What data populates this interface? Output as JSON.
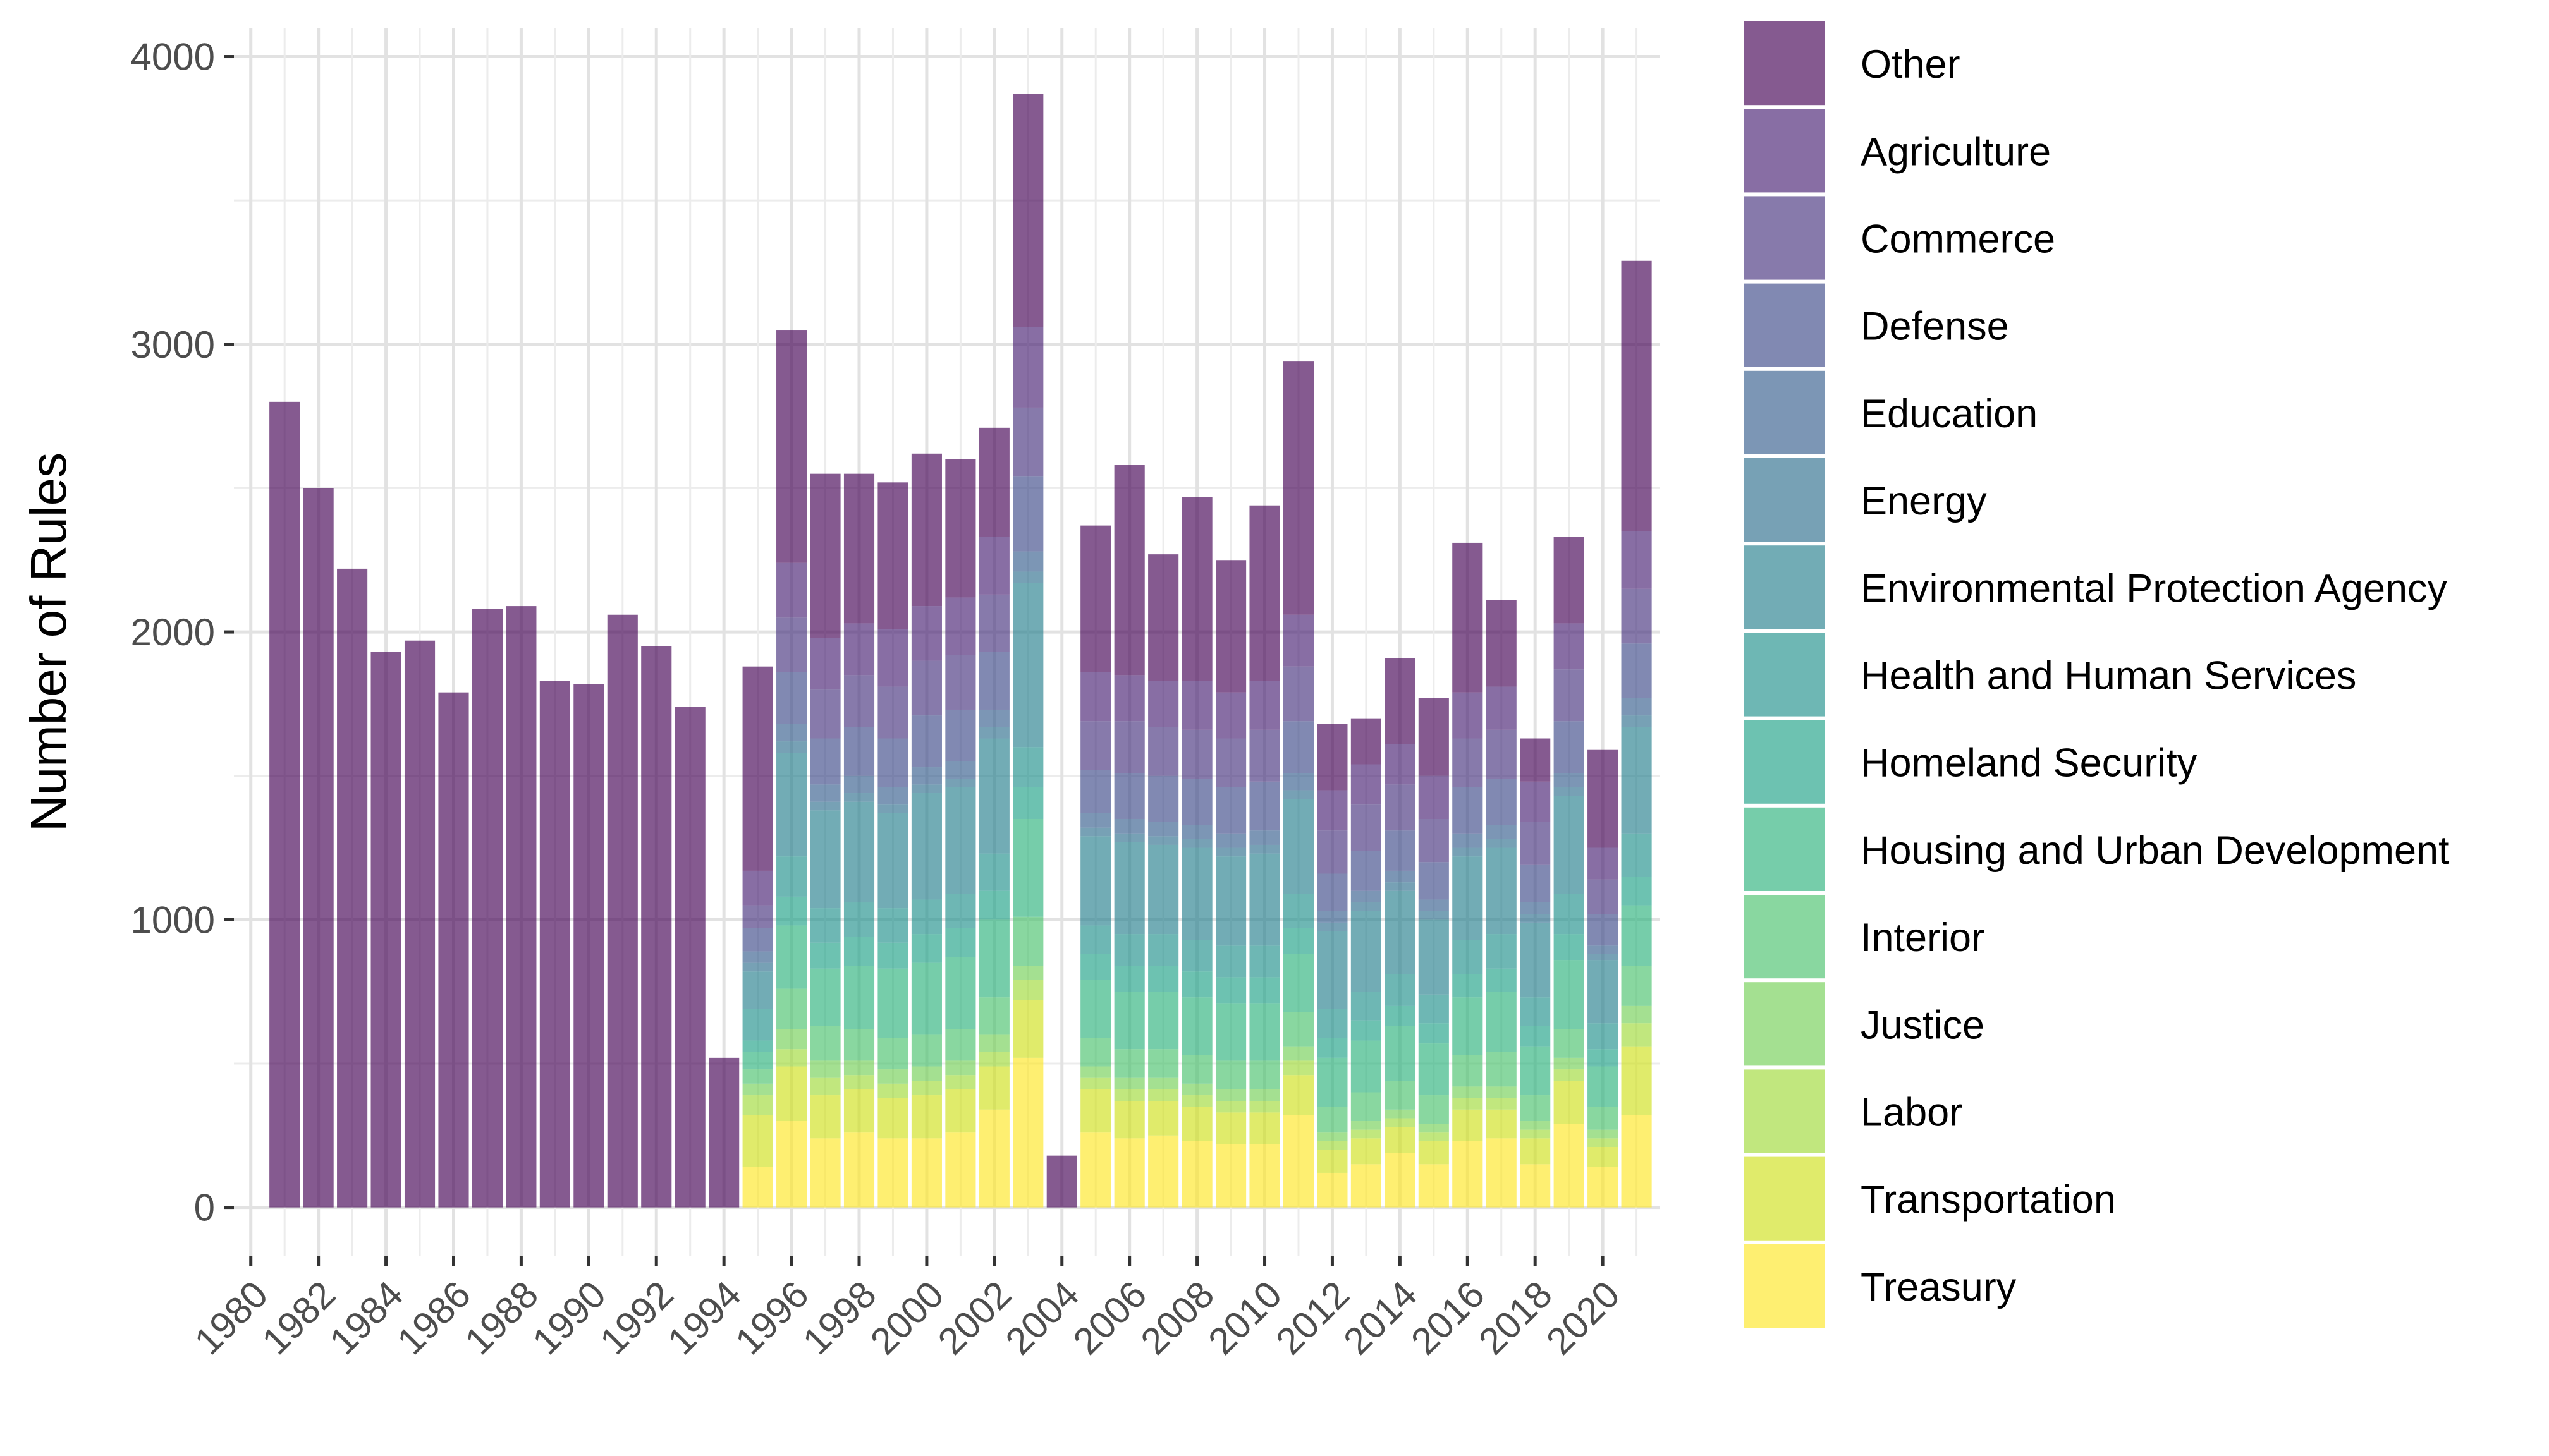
{
  "chart_data": {
    "type": "bar",
    "stacked": true,
    "title": "",
    "xlabel": "",
    "ylabel": "Number of Rules",
    "ylim": [
      -170,
      4100
    ],
    "xlim": [
      1979.5,
      2021.7
    ],
    "y_ticks": [
      0,
      1000,
      2000,
      3000,
      4000
    ],
    "x_ticks": [
      1980,
      1982,
      1984,
      1986,
      1988,
      1990,
      1992,
      1994,
      1996,
      1998,
      2000,
      2002,
      2004,
      2006,
      2008,
      2010,
      2012,
      2014,
      2016,
      2018,
      2020
    ],
    "grid": true,
    "legend_position": "right",
    "categories": [
      1981,
      1982,
      1983,
      1984,
      1985,
      1986,
      1987,
      1988,
      1989,
      1990,
      1991,
      1992,
      1993,
      1994,
      1995,
      1996,
      1997,
      1998,
      1999,
      2000,
      2001,
      2002,
      2003,
      2004,
      2005,
      2006,
      2007,
      2008,
      2009,
      2010,
      2011,
      2012,
      2013,
      2014,
      2015,
      2016,
      2017,
      2018,
      2019,
      2020,
      2021
    ],
    "series": [
      {
        "name": "Treasury",
        "color": "#FDE725",
        "values": [
          0,
          0,
          0,
          0,
          0,
          0,
          0,
          0,
          0,
          0,
          0,
          0,
          0,
          0,
          140,
          300,
          240,
          260,
          240,
          240,
          260,
          340,
          520,
          0,
          260,
          240,
          250,
          230,
          220,
          220,
          320,
          120,
          150,
          190,
          150,
          230,
          240,
          150,
          290,
          140,
          320
        ]
      },
      {
        "name": "Transportation",
        "color": "#D0E11C",
        "values": [
          0,
          0,
          0,
          0,
          0,
          0,
          0,
          0,
          0,
          0,
          0,
          0,
          0,
          0,
          180,
          190,
          150,
          150,
          140,
          150,
          150,
          150,
          200,
          0,
          150,
          130,
          120,
          120,
          110,
          110,
          140,
          80,
          90,
          90,
          80,
          110,
          100,
          90,
          150,
          70,
          240
        ]
      },
      {
        "name": "Labor",
        "color": "#A0DA39",
        "values": [
          0,
          0,
          0,
          0,
          0,
          0,
          0,
          0,
          0,
          0,
          0,
          0,
          0,
          0,
          70,
          60,
          60,
          50,
          50,
          50,
          50,
          50,
          70,
          0,
          40,
          40,
          40,
          40,
          40,
          40,
          50,
          30,
          30,
          30,
          30,
          40,
          40,
          30,
          40,
          30,
          80
        ]
      },
      {
        "name": "Justice",
        "color": "#73D056",
        "values": [
          0,
          0,
          0,
          0,
          0,
          0,
          0,
          0,
          0,
          0,
          0,
          0,
          0,
          0,
          40,
          70,
          60,
          50,
          50,
          50,
          50,
          60,
          50,
          0,
          40,
          40,
          40,
          40,
          40,
          40,
          50,
          30,
          30,
          30,
          30,
          40,
          40,
          30,
          40,
          30,
          60
        ]
      },
      {
        "name": "Interior",
        "color": "#4AC16D",
        "values": [
          0,
          0,
          0,
          0,
          0,
          0,
          0,
          0,
          0,
          0,
          0,
          0,
          0,
          0,
          50,
          140,
          120,
          110,
          110,
          110,
          110,
          130,
          170,
          0,
          100,
          100,
          100,
          100,
          100,
          100,
          120,
          90,
          100,
          100,
          100,
          110,
          120,
          90,
          100,
          80,
          140
        ]
      },
      {
        "name": "Housing and Urban Development",
        "color": "#2DB27D",
        "values": [
          0,
          0,
          0,
          0,
          0,
          0,
          0,
          0,
          0,
          0,
          0,
          0,
          0,
          0,
          60,
          220,
          200,
          220,
          240,
          250,
          250,
          270,
          340,
          0,
          200,
          200,
          200,
          200,
          200,
          200,
          200,
          170,
          180,
          190,
          180,
          200,
          210,
          170,
          240,
          140,
          210
        ]
      },
      {
        "name": "Homeland Security",
        "color": "#1FA187",
        "values": [
          0,
          0,
          0,
          0,
          0,
          0,
          0,
          0,
          0,
          0,
          0,
          0,
          0,
          0,
          40,
          100,
          90,
          100,
          90,
          100,
          100,
          100,
          110,
          0,
          90,
          90,
          90,
          90,
          90,
          90,
          90,
          70,
          70,
          70,
          70,
          80,
          80,
          70,
          90,
          60,
          100
        ]
      },
      {
        "name": "Health and Human Services",
        "color": "#21908C",
        "values": [
          0,
          0,
          0,
          0,
          0,
          0,
          0,
          0,
          0,
          0,
          0,
          0,
          0,
          0,
          110,
          140,
          120,
          120,
          120,
          120,
          120,
          130,
          140,
          0,
          100,
          110,
          110,
          110,
          110,
          110,
          120,
          100,
          100,
          110,
          100,
          120,
          120,
          100,
          140,
          90,
          150
        ]
      },
      {
        "name": "Environmental Protection Agency",
        "color": "#277F8E",
        "values": [
          0,
          0,
          0,
          0,
          0,
          0,
          0,
          0,
          0,
          0,
          0,
          0,
          0,
          0,
          130,
          360,
          340,
          350,
          330,
          370,
          370,
          400,
          570,
          0,
          310,
          320,
          310,
          320,
          310,
          320,
          330,
          270,
          280,
          290,
          260,
          290,
          300,
          260,
          340,
          220,
          370
        ]
      },
      {
        "name": "Energy",
        "color": "#2E6E8E",
        "values": [
          0,
          0,
          0,
          0,
          0,
          0,
          0,
          0,
          0,
          0,
          0,
          0,
          0,
          0,
          30,
          40,
          30,
          30,
          30,
          30,
          30,
          40,
          40,
          0,
          30,
          30,
          30,
          30,
          30,
          30,
          30,
          30,
          30,
          30,
          30,
          30,
          30,
          30,
          30,
          20,
          40
        ]
      },
      {
        "name": "Education",
        "color": "#365D8D",
        "values": [
          0,
          0,
          0,
          0,
          0,
          0,
          0,
          0,
          0,
          0,
          0,
          0,
          0,
          0,
          40,
          60,
          60,
          60,
          60,
          60,
          60,
          60,
          70,
          0,
          50,
          50,
          50,
          50,
          50,
          50,
          60,
          40,
          40,
          40,
          40,
          50,
          50,
          40,
          50,
          30,
          60
        ]
      },
      {
        "name": "Defense",
        "color": "#3E4A89",
        "values": [
          0,
          0,
          0,
          0,
          0,
          0,
          0,
          0,
          0,
          0,
          0,
          0,
          0,
          0,
          80,
          180,
          160,
          170,
          170,
          180,
          180,
          200,
          260,
          0,
          150,
          160,
          160,
          160,
          160,
          170,
          180,
          130,
          140,
          140,
          130,
          160,
          160,
          130,
          180,
          110,
          190
        ]
      },
      {
        "name": "Commerce",
        "color": "#46337E",
        "values": [
          0,
          0,
          0,
          0,
          0,
          0,
          0,
          0,
          0,
          0,
          0,
          0,
          0,
          0,
          80,
          190,
          170,
          180,
          180,
          190,
          190,
          200,
          240,
          0,
          170,
          180,
          170,
          170,
          170,
          180,
          190,
          150,
          160,
          160,
          150,
          170,
          170,
          150,
          180,
          120,
          190
        ]
      },
      {
        "name": "Agriculture",
        "color": "#482173",
        "values": [
          0,
          0,
          0,
          0,
          0,
          0,
          0,
          0,
          0,
          0,
          0,
          0,
          0,
          0,
          120,
          190,
          180,
          180,
          200,
          190,
          200,
          200,
          280,
          0,
          170,
          160,
          160,
          170,
          160,
          170,
          180,
          140,
          140,
          140,
          150,
          160,
          150,
          140,
          160,
          110,
          200
        ]
      },
      {
        "name": " Other",
        "color": "#440154",
        "values": [
          2800,
          2500,
          2220,
          1930,
          1970,
          1790,
          2080,
          2090,
          1830,
          1820,
          2060,
          1950,
          1740,
          520,
          710,
          810,
          570,
          520,
          510,
          530,
          480,
          380,
          810,
          180,
          510,
          730,
          440,
          640,
          460,
          610,
          880,
          230,
          160,
          300,
          270,
          520,
          300,
          150,
          300,
          340,
          940
        ]
      }
    ]
  }
}
